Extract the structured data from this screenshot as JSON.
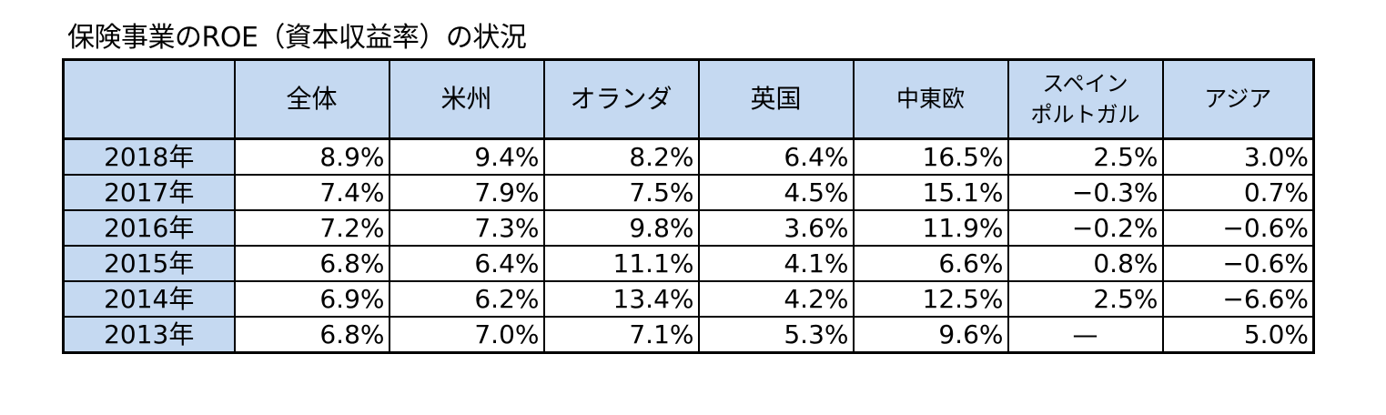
{
  "title": "保険事業のROE（資本収益率）の状況",
  "table": {
    "headers": {
      "corner": "",
      "col1": "全体",
      "col2": "米州",
      "col3": "オランダ",
      "col4": "英国",
      "col5": "中東欧",
      "col6_line1": "スペイン",
      "col6_line2": "ポルトガル",
      "col7": "アジア"
    },
    "rows": [
      {
        "year": "2018年",
        "v1": "8.9%",
        "v2": "9.4%",
        "v3": "8.2%",
        "v4": "6.4%",
        "v5": "16.5%",
        "v6": "2.5%",
        "v7": "3.0%"
      },
      {
        "year": "2017年",
        "v1": "7.4%",
        "v2": "7.9%",
        "v3": "7.5%",
        "v4": "4.5%",
        "v5": "15.1%",
        "v6": "−0.3%",
        "v7": "0.7%"
      },
      {
        "year": "2016年",
        "v1": "7.2%",
        "v2": "7.3%",
        "v3": "9.8%",
        "v4": "3.6%",
        "v5": "11.9%",
        "v6": "−0.2%",
        "v7": "−0.6%"
      },
      {
        "year": "2015年",
        "v1": "6.8%",
        "v2": "6.4%",
        "v3": "11.1%",
        "v4": "4.1%",
        "v5": "6.6%",
        "v6": "0.8%",
        "v7": "−0.6%"
      },
      {
        "year": "2014年",
        "v1": "6.9%",
        "v2": "6.2%",
        "v3": "13.4%",
        "v4": "4.2%",
        "v5": "12.5%",
        "v6": "2.5%",
        "v7": "−6.6%"
      },
      {
        "year": "2013年",
        "v1": "6.8%",
        "v2": "7.0%",
        "v3": "7.1%",
        "v4": "5.3%",
        "v5": "9.6%",
        "v6": "—",
        "v7": "5.0%"
      }
    ]
  },
  "colors": {
    "header_fill": "#c5d9f1",
    "border": "#000000",
    "text": "#000000"
  }
}
